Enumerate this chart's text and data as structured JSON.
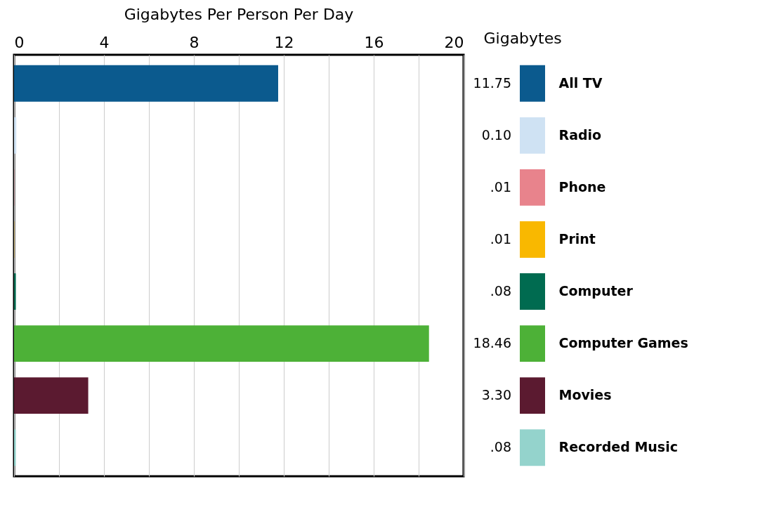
{
  "chart_data": {
    "type": "bar",
    "orientation": "horizontal",
    "title": "Gigabytes Per Person Per Day",
    "ylabel": "Gigabytes",
    "grid": "x",
    "categories": [
      "All TV",
      "Radio",
      "Phone",
      "Print",
      "Computer",
      "Computer Games",
      "Movies",
      "Recorded Music"
    ],
    "values": [
      11.75,
      0.1,
      0.01,
      0.01,
      0.08,
      18.46,
      3.3,
      0.08
    ],
    "value_labels": [
      "11.75",
      "0.10",
      ".01",
      ".01",
      ".08",
      "18.46",
      "3.30",
      ".08"
    ],
    "colors": [
      "#0b5a8e",
      "#cfe2f3",
      "#e8838c",
      "#f9b800",
      "#006b50",
      "#4db137",
      "#5b1a30",
      "#94d3cc"
    ],
    "xlim": [
      0,
      20
    ],
    "xticks": [
      0,
      {
        "value": 2,
        "label": null
      },
      4,
      {
        "value": 6,
        "label": null
      },
      8,
      {
        "value": 10,
        "label": null
      },
      12,
      {
        "value": 14,
        "label": null
      },
      16,
      {
        "value": 18,
        "label": null
      },
      20
    ]
  }
}
